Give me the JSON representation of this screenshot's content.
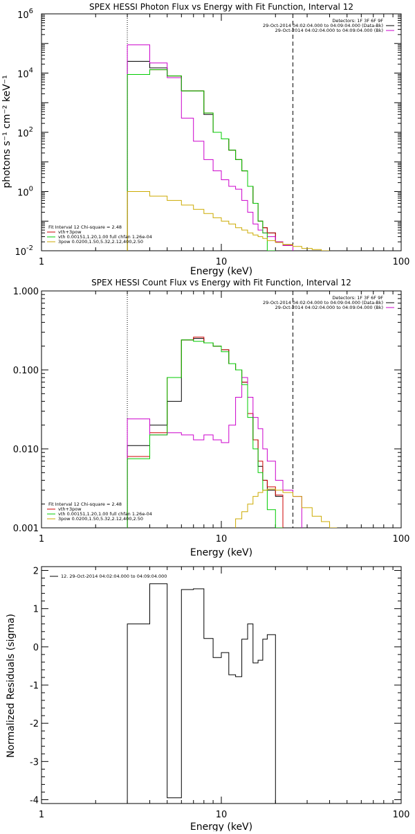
{
  "chart_data": [
    {
      "id": "photon",
      "type": "line",
      "title": "SPEX HESSI Photon Flux vs Energy with Fit Function, Interval 12",
      "xlabel": "Energy (keV)",
      "ylabel": "photons s⁻¹ cm⁻² keV⁻¹",
      "x_scale": "log",
      "y_scale": "log",
      "xlim": [
        1,
        100
      ],
      "ylim": [
        0.01,
        1000000
      ],
      "x_ticks": [
        {
          "value": 1,
          "label": "1"
        },
        {
          "value": 10,
          "label": "10"
        },
        {
          "value": 100,
          "label": "100"
        }
      ],
      "y_ticks": [
        {
          "value": 0.01,
          "base": "10",
          "exp": "-2"
        },
        {
          "value": 1,
          "base": "10",
          "exp": "0"
        },
        {
          "value": 100,
          "base": "10",
          "exp": "2"
        },
        {
          "value": 10000,
          "base": "10",
          "exp": "4"
        },
        {
          "value": 1000000,
          "base": "10",
          "exp": "6"
        }
      ],
      "vlines": [
        {
          "x": 3,
          "style": "dotted"
        },
        {
          "x": 25,
          "style": "dashed"
        }
      ],
      "legend_top": [
        {
          "text": "Detectors: 1F 3F 6F 9F",
          "color": ""
        },
        {
          "text": "29-Oct-2014 04:02:04.000 to 04:09:04.000 (Data-Bk)",
          "color": "#000000"
        },
        {
          "text": "29-Oct-2014 04:02:04.000 to 04:09:04.000 (Bk)",
          "color": "#cc00cc"
        }
      ],
      "legend_bottom": [
        {
          "text": "Fit Interval 12   Chi-square = 2.48",
          "color": ""
        },
        {
          "text": "vth+3pow",
          "color": "#cc0000"
        },
        {
          "text": "vth 0.00151,1.20,1.00  full chfan 1.26e-04",
          "color": "#00cc00"
        },
        {
          "text": "3pow 0.0200,1.50,5.32,2.12,400,2.50",
          "color": "#ccaa00"
        }
      ],
      "bin_edges": [
        3,
        4,
        5,
        6,
        7,
        8,
        9,
        10,
        11,
        12,
        13,
        14,
        15,
        16,
        17,
        18,
        20,
        22,
        25,
        28,
        32,
        36,
        40
      ],
      "series": [
        {
          "name": "Data-Bk",
          "color": "#000000",
          "values": [
            25000,
            15000,
            8000,
            2500,
            2500,
            400,
            100,
            60,
            25,
            12,
            5,
            1.5,
            0.4,
            0.1,
            0.06,
            0.04,
            0.02,
            0.016,
            null,
            null,
            null,
            null
          ]
        },
        {
          "name": "vth+3pow",
          "color": "#cc0000",
          "values": [
            9000,
            13000,
            8000,
            2500,
            2500,
            450,
            100,
            60,
            25,
            12,
            5,
            1.5,
            0.4,
            0.1,
            0.06,
            0.04,
            0.02,
            0.016,
            null,
            null,
            null,
            null
          ]
        },
        {
          "name": "Bk",
          "color": "#cc00cc",
          "values": [
            90000,
            22000,
            7000,
            300,
            50,
            12,
            5,
            2.5,
            1.5,
            1.2,
            0.5,
            0.2,
            0.08,
            0.05,
            0.04,
            0.03,
            0.02,
            0.015,
            null,
            null,
            null,
            null
          ]
        },
        {
          "name": "vth",
          "color": "#00cc00",
          "values": [
            9000,
            13000,
            8000,
            2500,
            2500,
            450,
            100,
            60,
            25,
            12,
            5,
            1.5,
            0.4,
            0.1,
            0.04,
            0.01,
            null,
            null,
            null,
            null,
            null,
            null
          ]
        },
        {
          "name": "3pow",
          "color": "#ccaa00",
          "values": [
            1,
            0.7,
            0.5,
            0.35,
            0.25,
            0.18,
            0.13,
            0.1,
            0.08,
            0.06,
            0.05,
            0.04,
            0.034,
            0.03,
            0.026,
            0.022,
            0.019,
            0.016,
            0.014,
            0.012,
            0.011,
            0.01
          ]
        }
      ]
    },
    {
      "id": "count",
      "type": "line",
      "title": "SPEX HESSI Count Flux vs Energy with Fit Function, Interval 12",
      "xlabel": "Energy (keV)",
      "ylabel": "",
      "x_scale": "log",
      "y_scale": "log",
      "xlim": [
        1,
        100
      ],
      "ylim": [
        0.001,
        1
      ],
      "x_ticks": [
        {
          "value": 1,
          "label": "1"
        },
        {
          "value": 10,
          "label": "10"
        },
        {
          "value": 100,
          "label": "100"
        }
      ],
      "y_ticks": [
        {
          "value": 0.001,
          "label": "0.001"
        },
        {
          "value": 0.01,
          "label": "0.010"
        },
        {
          "value": 0.1,
          "label": "0.100"
        },
        {
          "value": 1,
          "label": "1.000"
        }
      ],
      "vlines": [
        {
          "x": 3,
          "style": "dotted"
        },
        {
          "x": 25,
          "style": "dashed"
        }
      ],
      "legend_top": [
        {
          "text": "Detectors: 1F 3F 6F 9F",
          "color": ""
        },
        {
          "text": "29-Oct-2014 04:02:04.000 to 04:09:04.000 (Data-Bk)",
          "color": "#000000"
        },
        {
          "text": "29-Oct-2014 04:02:04.000 to 04:09:04.000 (Bk)",
          "color": "#cc00cc"
        }
      ],
      "legend_bottom": [
        {
          "text": "Fit Interval 12   Chi-square = 2.48",
          "color": ""
        },
        {
          "text": "vth+3pow",
          "color": "#cc0000"
        },
        {
          "text": "vth 0.00151,1.20,1.00  full chfan 1.26e-04",
          "color": "#00cc00"
        },
        {
          "text": "3pow 0.0200,1.50,5.32,2.12,400,2.50",
          "color": "#ccaa00"
        }
      ],
      "bin_edges": [
        3,
        4,
        5,
        6,
        7,
        8,
        9,
        10,
        11,
        12,
        13,
        14,
        15,
        16,
        17,
        18,
        20,
        22,
        25,
        28,
        32,
        36,
        40,
        44
      ],
      "series": [
        {
          "name": "Data-Bk",
          "color": "#000000",
          "values": [
            0.011,
            0.02,
            0.04,
            0.24,
            0.25,
            0.22,
            0.2,
            0.18,
            0.12,
            0.1,
            0.07,
            0.028,
            0.013,
            0.006,
            0.004,
            0.003,
            0.0025,
            null,
            null,
            null,
            null,
            null,
            null
          ]
        },
        {
          "name": "vth+3pow",
          "color": "#cc0000",
          "values": [
            0.008,
            0.016,
            0.08,
            0.24,
            0.26,
            0.22,
            0.2,
            0.18,
            0.12,
            0.1,
            0.07,
            0.028,
            0.013,
            0.007,
            0.004,
            0.0033,
            0.0026,
            null,
            null,
            null,
            null,
            null,
            null
          ]
        },
        {
          "name": "Bk",
          "color": "#cc00cc",
          "values": [
            0.024,
            0.015,
            0.016,
            0.015,
            0.013,
            0.015,
            0.013,
            0.012,
            0.02,
            0.045,
            0.08,
            0.045,
            0.025,
            0.018,
            0.01,
            0.007,
            0.004,
            0.003,
            0.0025,
            null,
            null,
            null,
            null
          ]
        },
        {
          "name": "vth",
          "color": "#00cc00",
          "values": [
            0.0075,
            0.015,
            0.08,
            0.24,
            0.23,
            0.22,
            0.2,
            0.17,
            0.12,
            0.1,
            0.065,
            0.025,
            0.01,
            0.005,
            0.003,
            0.0017,
            0.001,
            null,
            null,
            null,
            null,
            null,
            null
          ]
        },
        {
          "name": "3pow",
          "color": "#ccaa00",
          "values": [
            null,
            null,
            null,
            null,
            null,
            null,
            null,
            null,
            null,
            0.0013,
            0.0016,
            0.002,
            0.0025,
            0.0028,
            0.003,
            0.0031,
            0.003,
            0.0028,
            0.0025,
            0.0018,
            0.0014,
            0.0012,
            0.001
          ]
        }
      ]
    },
    {
      "id": "resid",
      "type": "line",
      "title": "",
      "xlabel": "Energy (keV)",
      "ylabel": "Normalized Residuals (sigma)",
      "x_scale": "log",
      "y_scale": "linear",
      "xlim": [
        1,
        100
      ],
      "ylim": [
        -4.1,
        2.1
      ],
      "x_ticks": [
        {
          "value": 1,
          "label": "1"
        },
        {
          "value": 10,
          "label": "10"
        },
        {
          "value": 100,
          "label": "100"
        }
      ],
      "y_ticks": [
        {
          "value": -4,
          "label": "-4"
        },
        {
          "value": -3,
          "label": "-3"
        },
        {
          "value": -2,
          "label": "-2"
        },
        {
          "value": -1,
          "label": "-1"
        },
        {
          "value": 0,
          "label": "0"
        },
        {
          "value": 1,
          "label": "1"
        },
        {
          "value": 2,
          "label": "2"
        }
      ],
      "legend_top": [
        {
          "text": "12. 29-Oct-2014 04:02:04.000 to 04:09:04.000",
          "color": "#000000"
        }
      ],
      "bin_edges": [
        3,
        4,
        5,
        6,
        7,
        8,
        9,
        10,
        11,
        12,
        13,
        14,
        15,
        16,
        17,
        18,
        20,
        22,
        25
      ],
      "series": [
        {
          "name": "residuals",
          "color": "#000000",
          "values": [
            0.6,
            1.65,
            -3.95,
            1.5,
            1.52,
            0.22,
            -0.28,
            -0.15,
            -0.73,
            -0.78,
            0.2,
            0.6,
            -0.42,
            -0.35,
            0.2,
            0.32,
            null,
            null
          ]
        }
      ]
    }
  ]
}
